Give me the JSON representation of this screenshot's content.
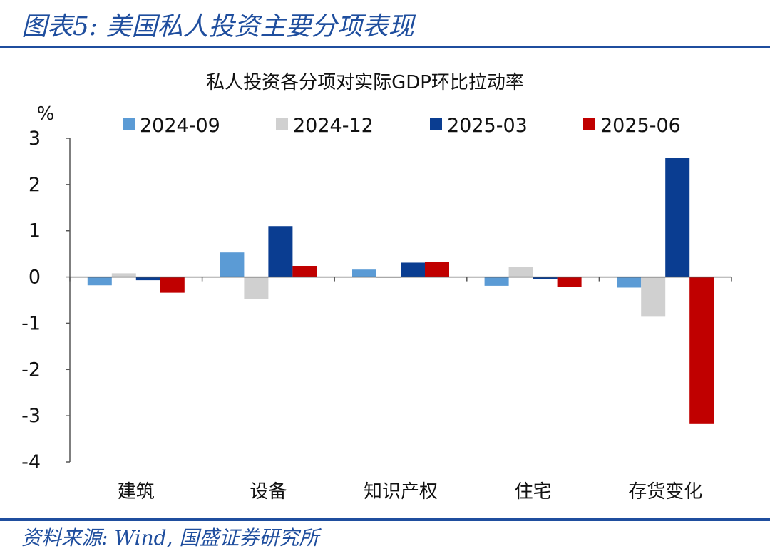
{
  "figure": {
    "title": "图表5:  美国私人投资主要分项表现",
    "source": "资料来源:  Wind, 国盛证券研究所"
  },
  "chart_data": {
    "type": "bar",
    "title": "私人投资各分项对实际GDP环比拉动率",
    "ylabel": "%",
    "xlabel": "",
    "ylim": [
      -4,
      3
    ],
    "yticks": [
      3,
      2,
      1,
      0,
      -1,
      -2,
      -3,
      -4
    ],
    "categories": [
      "建筑",
      "设备",
      "知识产权",
      "住宅",
      "存货变化"
    ],
    "legend_position": "top",
    "grid": false,
    "series": [
      {
        "name": "2024-09",
        "color": "#5b9bd5",
        "values": [
          -0.18,
          0.53,
          0.16,
          -0.19,
          -0.23
        ]
      },
      {
        "name": "2024-12",
        "color": "#d0d0d0",
        "values": [
          0.08,
          -0.48,
          -0.02,
          0.21,
          -0.86
        ]
      },
      {
        "name": "2025-03",
        "color": "#0a3d91",
        "values": [
          -0.07,
          1.1,
          0.31,
          -0.05,
          2.58
        ]
      },
      {
        "name": "2025-06",
        "color": "#c00000",
        "values": [
          -0.34,
          0.24,
          0.33,
          -0.21,
          -3.18
        ]
      }
    ]
  }
}
